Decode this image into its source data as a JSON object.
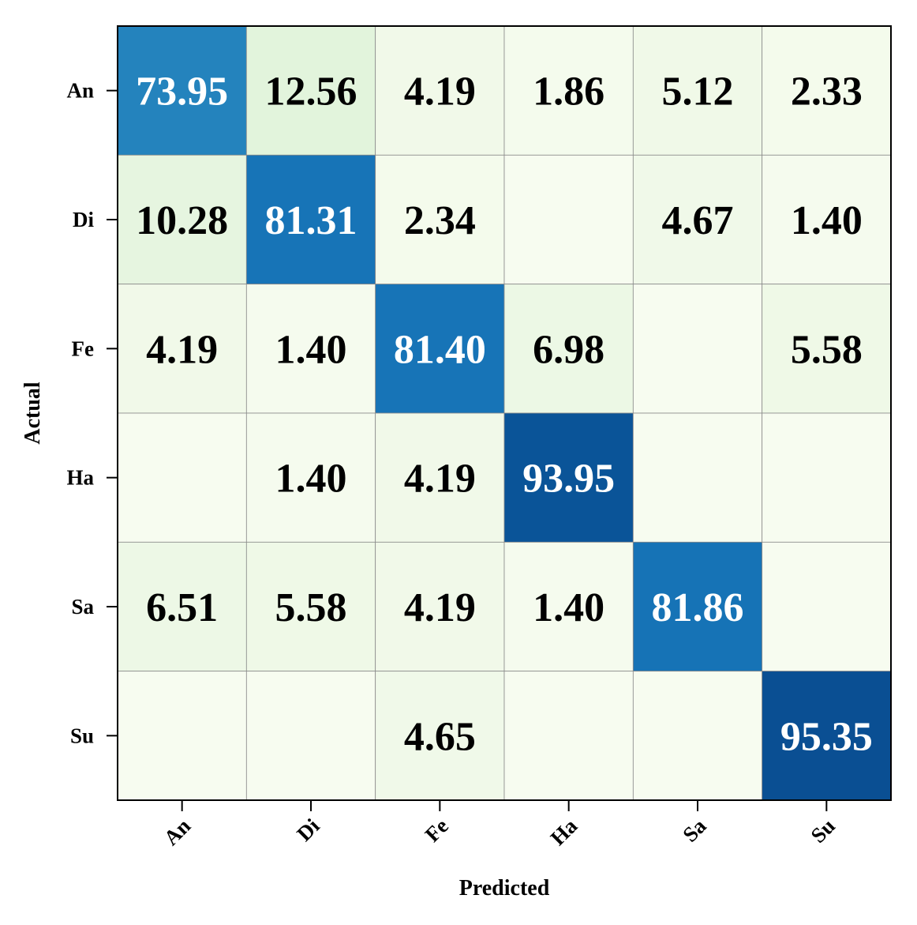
{
  "chart_data": {
    "type": "heatmap",
    "title": "",
    "xlabel": "Predicted",
    "ylabel": "Actual",
    "x_categories": [
      "An",
      "Di",
      "Fe",
      "Ha",
      "Sa",
      "Su"
    ],
    "y_categories": [
      "An",
      "Di",
      "Fe",
      "Ha",
      "Sa",
      "Su"
    ],
    "colormap": "Blues-GnBu",
    "value_range": [
      0,
      100
    ],
    "grid": true,
    "values": [
      [
        73.95,
        12.56,
        4.19,
        1.86,
        5.12,
        2.33
      ],
      [
        10.28,
        81.31,
        2.34,
        0,
        4.67,
        1.4
      ],
      [
        4.19,
        1.4,
        81.4,
        6.98,
        0,
        5.58
      ],
      [
        0,
        1.4,
        4.19,
        93.95,
        0,
        0
      ],
      [
        6.51,
        5.58,
        4.19,
        1.4,
        81.86,
        0
      ],
      [
        0,
        0,
        4.65,
        0,
        0,
        95.35
      ]
    ],
    "labels": [
      [
        "73.95",
        "12.56",
        "4.19",
        "1.86",
        "5.12",
        "2.33"
      ],
      [
        "10.28",
        "81.31",
        "2.34",
        "",
        "4.67",
        "1.40"
      ],
      [
        "4.19",
        "1.40",
        "81.40",
        "6.98",
        "",
        "5.58"
      ],
      [
        "",
        "1.40",
        "4.19",
        "93.95",
        "",
        ""
      ],
      [
        "6.51",
        "5.58",
        "4.19",
        "1.40",
        "81.86",
        ""
      ],
      [
        "",
        "",
        "4.65",
        "",
        "",
        "95.35"
      ]
    ]
  }
}
